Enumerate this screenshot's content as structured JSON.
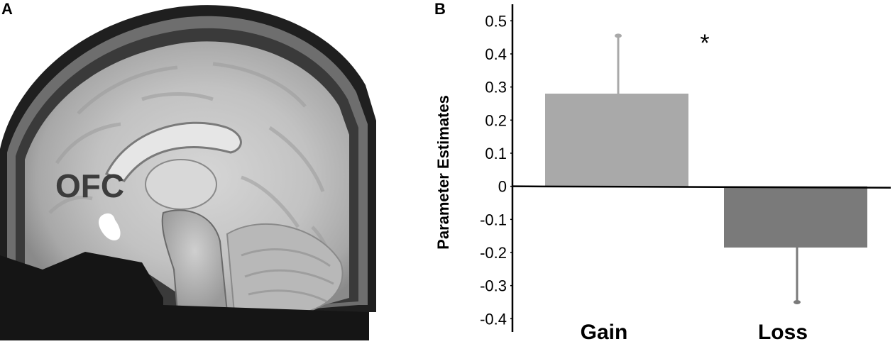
{
  "panels": {
    "a": {
      "letter": "A",
      "region_label": "OFC"
    },
    "b": {
      "letter": "B"
    }
  },
  "colors": {
    "gain_bar": "#a9a9a9",
    "loss_bar": "#7a7a7a",
    "error_bar_gain": "#a9a9a9",
    "error_bar_loss": "#7a7a7a",
    "axis": "#000000",
    "brain_bg": "#2b2b2b",
    "roi": "#ffffff"
  },
  "chart_data": {
    "type": "bar",
    "categories": [
      "Gain",
      "Loss"
    ],
    "values": [
      0.28,
      -0.185
    ],
    "error_upper": [
      0.455,
      null
    ],
    "error_lower": [
      null,
      -0.35
    ],
    "ylabel": "Parameter Estimates",
    "xlabel": "",
    "ylim": [
      -0.44,
      0.55
    ],
    "yticks": [
      0.5,
      0.4,
      0.3,
      0.2,
      0.1,
      0,
      -0.1,
      -0.2,
      -0.3,
      -0.4
    ],
    "ytick_labels": [
      "0.5",
      "0.4",
      "0.3",
      "0.2",
      "0.1",
      "0",
      "-0.1",
      "-0.2",
      "-0.3",
      "-0.4"
    ],
    "annotation": "*",
    "grid": false
  }
}
